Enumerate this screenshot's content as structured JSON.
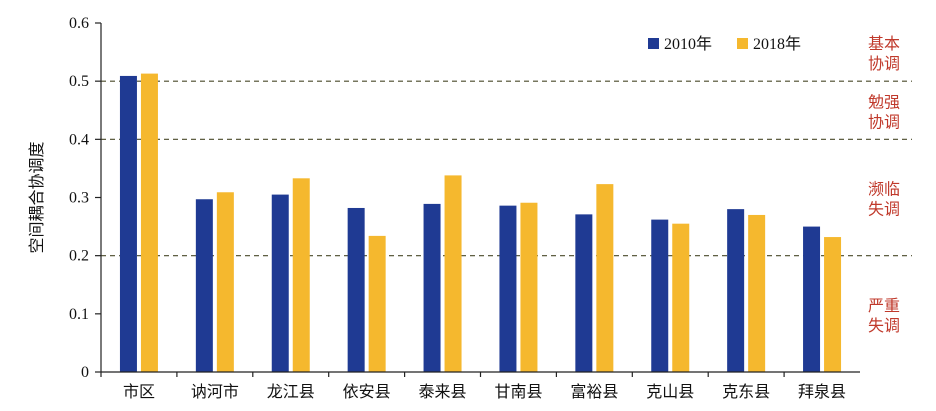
{
  "chart_data": {
    "type": "bar",
    "title": "",
    "xlabel": "",
    "ylabel": "空间耦合协调度",
    "ylim": [
      0,
      0.6
    ],
    "yticks": [
      "0",
      "0.1",
      "0.2",
      "0.3",
      "0.4",
      "0.5",
      "0.6"
    ],
    "grid": false,
    "legend_position": "top-right",
    "categories": [
      "市区",
      "讷河市",
      "龙江县",
      "依安县",
      "泰来县",
      "甘南县",
      "富裕县",
      "克山县",
      "克东县",
      "拜泉县"
    ],
    "series": [
      {
        "name": "2010年",
        "color": "#1f3a93",
        "values": [
          0.509,
          0.297,
          0.305,
          0.282,
          0.289,
          0.286,
          0.271,
          0.262,
          0.28,
          0.25
        ]
      },
      {
        "name": "2018年",
        "color": "#f5b82e",
        "values": [
          0.513,
          0.309,
          0.333,
          0.234,
          0.338,
          0.291,
          0.323,
          0.255,
          0.27,
          0.232
        ]
      }
    ],
    "reference_lines": [
      {
        "value": 0.5,
        "style": "dashed",
        "color": "#4a4a2a"
      },
      {
        "value": 0.4,
        "style": "dashed",
        "color": "#4a4a2a"
      },
      {
        "value": 0.2,
        "style": "dashed",
        "color": "#4a4a2a"
      }
    ],
    "zones": [
      {
        "line1": "基本",
        "line2": "协调"
      },
      {
        "line1": "勉强",
        "line2": "协调"
      },
      {
        "line1": "濒临",
        "line2": "失调"
      },
      {
        "line1": "严重",
        "line2": "失调"
      }
    ],
    "zone_label_color": "#c0392b"
  }
}
